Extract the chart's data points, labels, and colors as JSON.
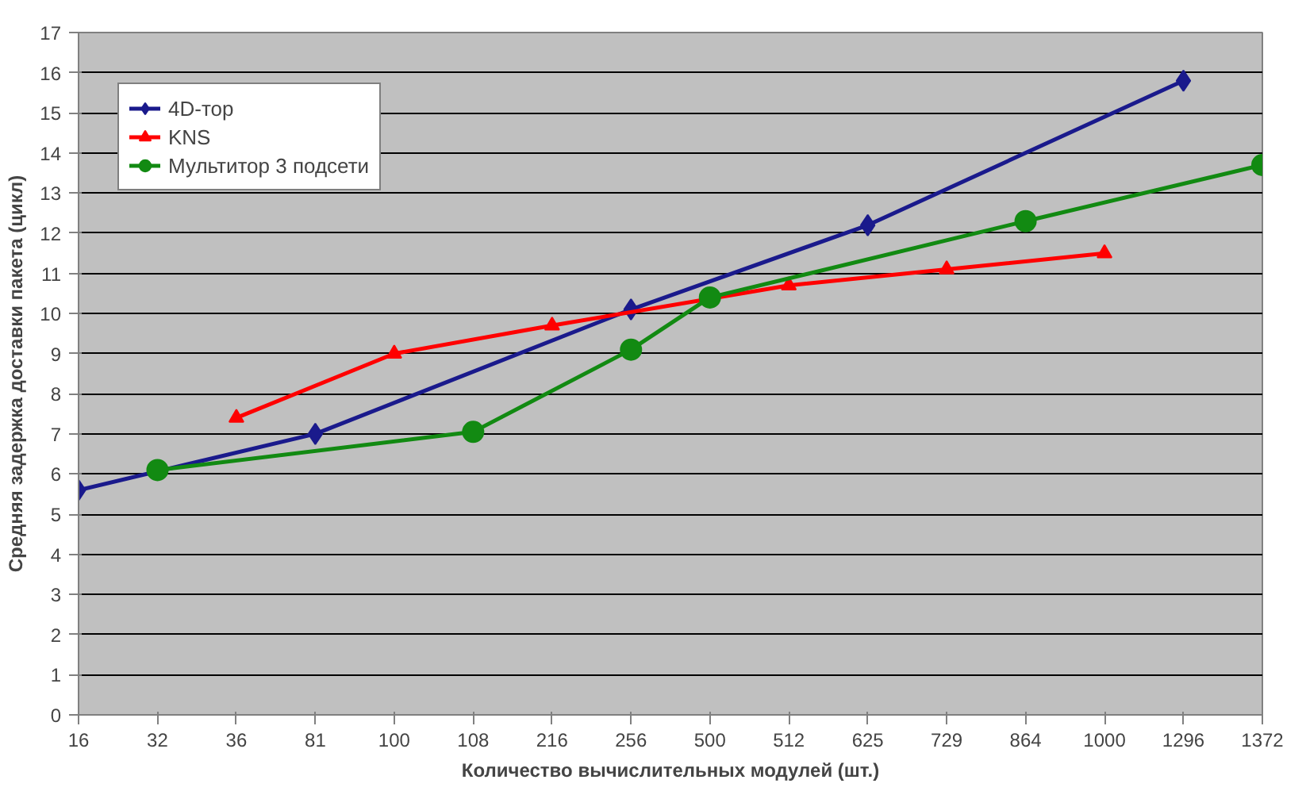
{
  "chart_data": {
    "type": "line",
    "xlabel": "Количество вычислительных модулей (шт.)",
    "ylabel": "Средняя задержка доставки пакета (цикл)",
    "categories": [
      "16",
      "32",
      "36",
      "81",
      "100",
      "108",
      "216",
      "256",
      "500",
      "512",
      "625",
      "729",
      "864",
      "1000",
      "1296",
      "1372"
    ],
    "series": [
      {
        "name": "4D-тор",
        "color": "#1a1a8c",
        "marker": "diamond",
        "values": [
          5.6,
          null,
          null,
          7.0,
          null,
          null,
          null,
          10.1,
          null,
          null,
          12.2,
          null,
          null,
          null,
          15.8,
          null
        ]
      },
      {
        "name": "KNS",
        "color": "#ff0000",
        "marker": "triangle",
        "values": [
          null,
          null,
          7.4,
          null,
          9.0,
          null,
          9.7,
          null,
          null,
          10.7,
          null,
          11.1,
          null,
          11.5,
          null,
          null
        ]
      },
      {
        "name": "Мультитор 3 подсети",
        "color": "#128a12",
        "marker": "circle",
        "values": [
          null,
          6.1,
          null,
          null,
          null,
          7.05,
          null,
          9.1,
          10.4,
          null,
          null,
          null,
          12.3,
          null,
          null,
          13.7
        ]
      }
    ],
    "ylim": [
      0,
      17
    ],
    "yticks": [
      0,
      1,
      2,
      3,
      4,
      5,
      6,
      7,
      8,
      9,
      10,
      11,
      12,
      13,
      14,
      15,
      16,
      17
    ],
    "grid": "y",
    "legend": "top left"
  }
}
